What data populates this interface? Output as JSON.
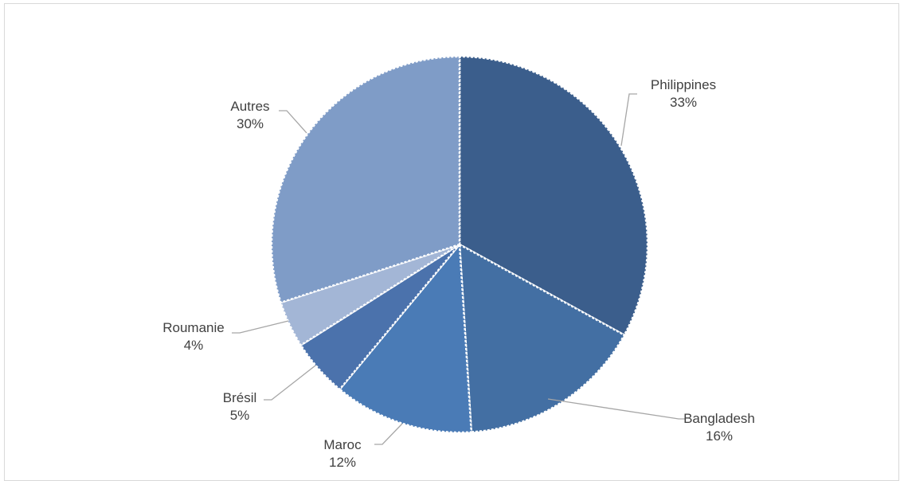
{
  "chart_data": {
    "type": "pie",
    "title": "",
    "slices": [
      {
        "label": "Philippines",
        "value": 33,
        "value_label": "33%",
        "color": "#3b5e8c"
      },
      {
        "label": "Bangladesh",
        "value": 16,
        "value_label": "16%",
        "color": "#436fa3"
      },
      {
        "label": "Maroc",
        "value": 12,
        "value_label": "12%",
        "color": "#4a7bb6"
      },
      {
        "label": "Brésil",
        "value": 5,
        "value_label": "5%",
        "color": "#4b72ac"
      },
      {
        "label": "Roumanie",
        "value": 4,
        "value_label": "4%",
        "color": "#a3b6d6"
      },
      {
        "label": "Autres",
        "value": 30,
        "value_label": "30%",
        "color": "#7f9cc7"
      }
    ],
    "start_angle": "12 o'clock",
    "direction": "clockwise",
    "separator": "white dotted",
    "leader_line_color": "#a6a6a6"
  }
}
